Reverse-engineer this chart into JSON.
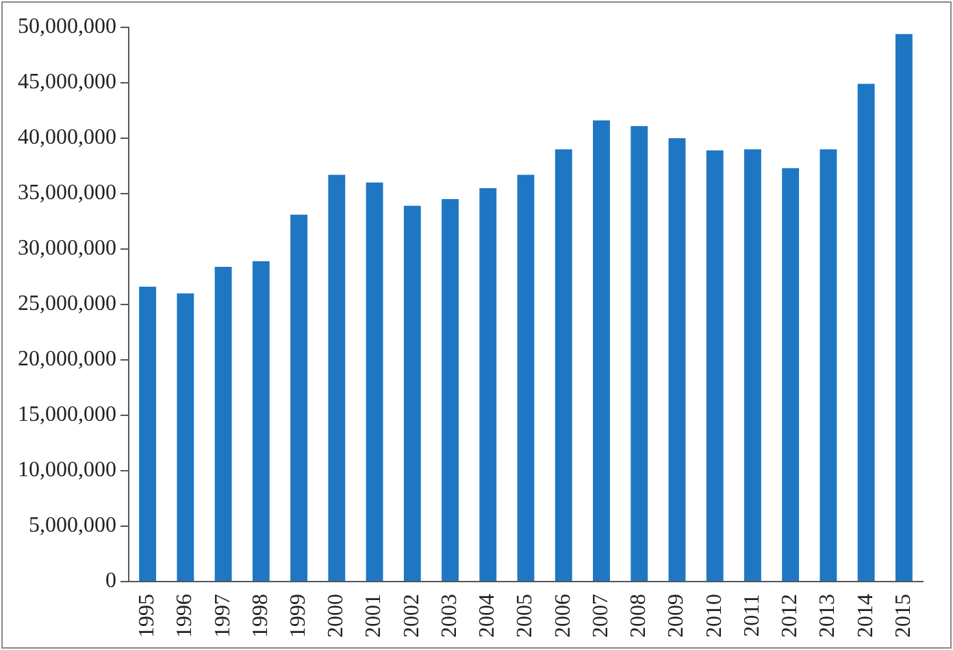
{
  "chart_data": {
    "type": "bar",
    "categories": [
      "1995",
      "1996",
      "1997",
      "1998",
      "1999",
      "2000",
      "2001",
      "2002",
      "2003",
      "2004",
      "2005",
      "2006",
      "2007",
      "2008",
      "2009",
      "2010",
      "2011",
      "2012",
      "2013",
      "2014",
      "2015"
    ],
    "values": [
      26600000,
      26000000,
      28400000,
      28900000,
      33100000,
      36700000,
      36000000,
      33900000,
      34500000,
      35500000,
      36700000,
      39000000,
      41600000,
      41100000,
      40000000,
      38900000,
      39000000,
      37300000,
      39000000,
      44900000,
      49400000
    ],
    "color": "#1f77c4",
    "ylim": [
      0,
      50000000
    ],
    "yticks": [
      {
        "value": 0,
        "label": "0"
      },
      {
        "value": 5000000,
        "label": "5,000,000"
      },
      {
        "value": 10000000,
        "label": "10,000,000"
      },
      {
        "value": 15000000,
        "label": "15,000,000"
      },
      {
        "value": 20000000,
        "label": "20,000,000"
      },
      {
        "value": 25000000,
        "label": "25,000,000"
      },
      {
        "value": 30000000,
        "label": "30,000,000"
      },
      {
        "value": 35000000,
        "label": "35,000,000"
      },
      {
        "value": 40000000,
        "label": "40,000,000"
      },
      {
        "value": 45000000,
        "label": "45,000,000"
      },
      {
        "value": 50000000,
        "label": "50,000,000"
      }
    ],
    "grid": false,
    "legend": false
  }
}
